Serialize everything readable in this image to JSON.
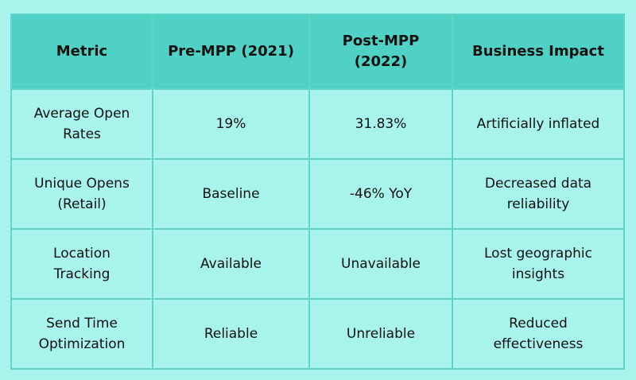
{
  "table": {
    "headers": [
      "Metric",
      "Pre-MPP (2021)",
      "Post-MPP (2022)",
      "Business Impact"
    ],
    "rows": [
      [
        "Average Open Rates",
        "19%",
        "31.83%",
        "Artificially inflated"
      ],
      [
        "Unique Opens (Retail)",
        "Baseline",
        "-46% YoY",
        "Decreased data reliability"
      ],
      [
        "Location Tracking",
        "Available",
        "Unavailable",
        "Lost geographic insights"
      ],
      [
        "Send Time Optimization",
        "Reliable",
        "Unreliable",
        "Reduced effectiveness"
      ]
    ]
  }
}
